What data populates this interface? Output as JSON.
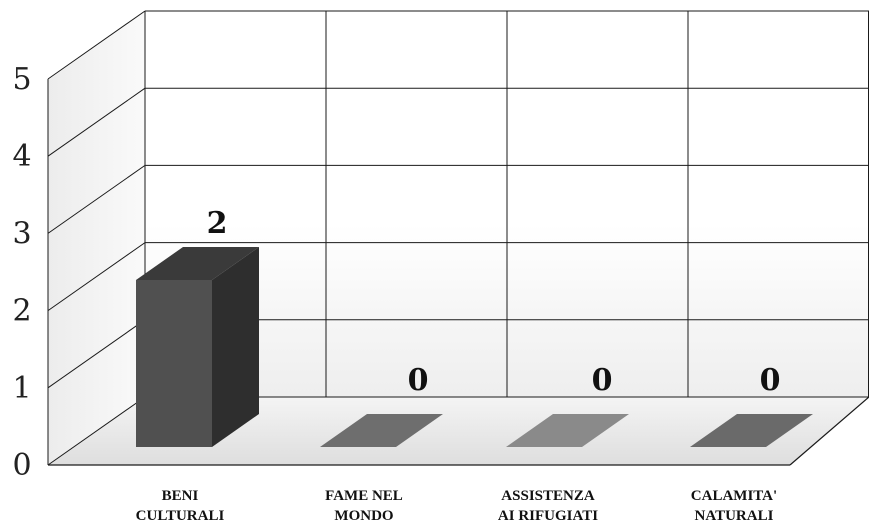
{
  "chart_data": {
    "type": "bar",
    "categories": [
      [
        "BENI",
        "CULTURALI"
      ],
      [
        "FAME NEL",
        "MONDO"
      ],
      [
        "ASSISTENZA",
        "AI RIFUGIATI"
      ],
      [
        "CALAMITA'",
        "NATURALI"
      ]
    ],
    "values": [
      2,
      0,
      0,
      0
    ],
    "data_labels": [
      "2",
      "0",
      "0",
      "0"
    ],
    "ylim": [
      0,
      5
    ],
    "yticks": [
      "0",
      "1",
      "2",
      "3",
      "4",
      "5"
    ],
    "grid": true,
    "style": "3d",
    "colors": {
      "bar_front": "#505050",
      "bar_side": "#2e2e2e",
      "bar_top": "#3a3a3a",
      "zero_bars": [
        "#6e6e6e",
        "#8a8a8a",
        "#6a6a6a"
      ]
    }
  }
}
